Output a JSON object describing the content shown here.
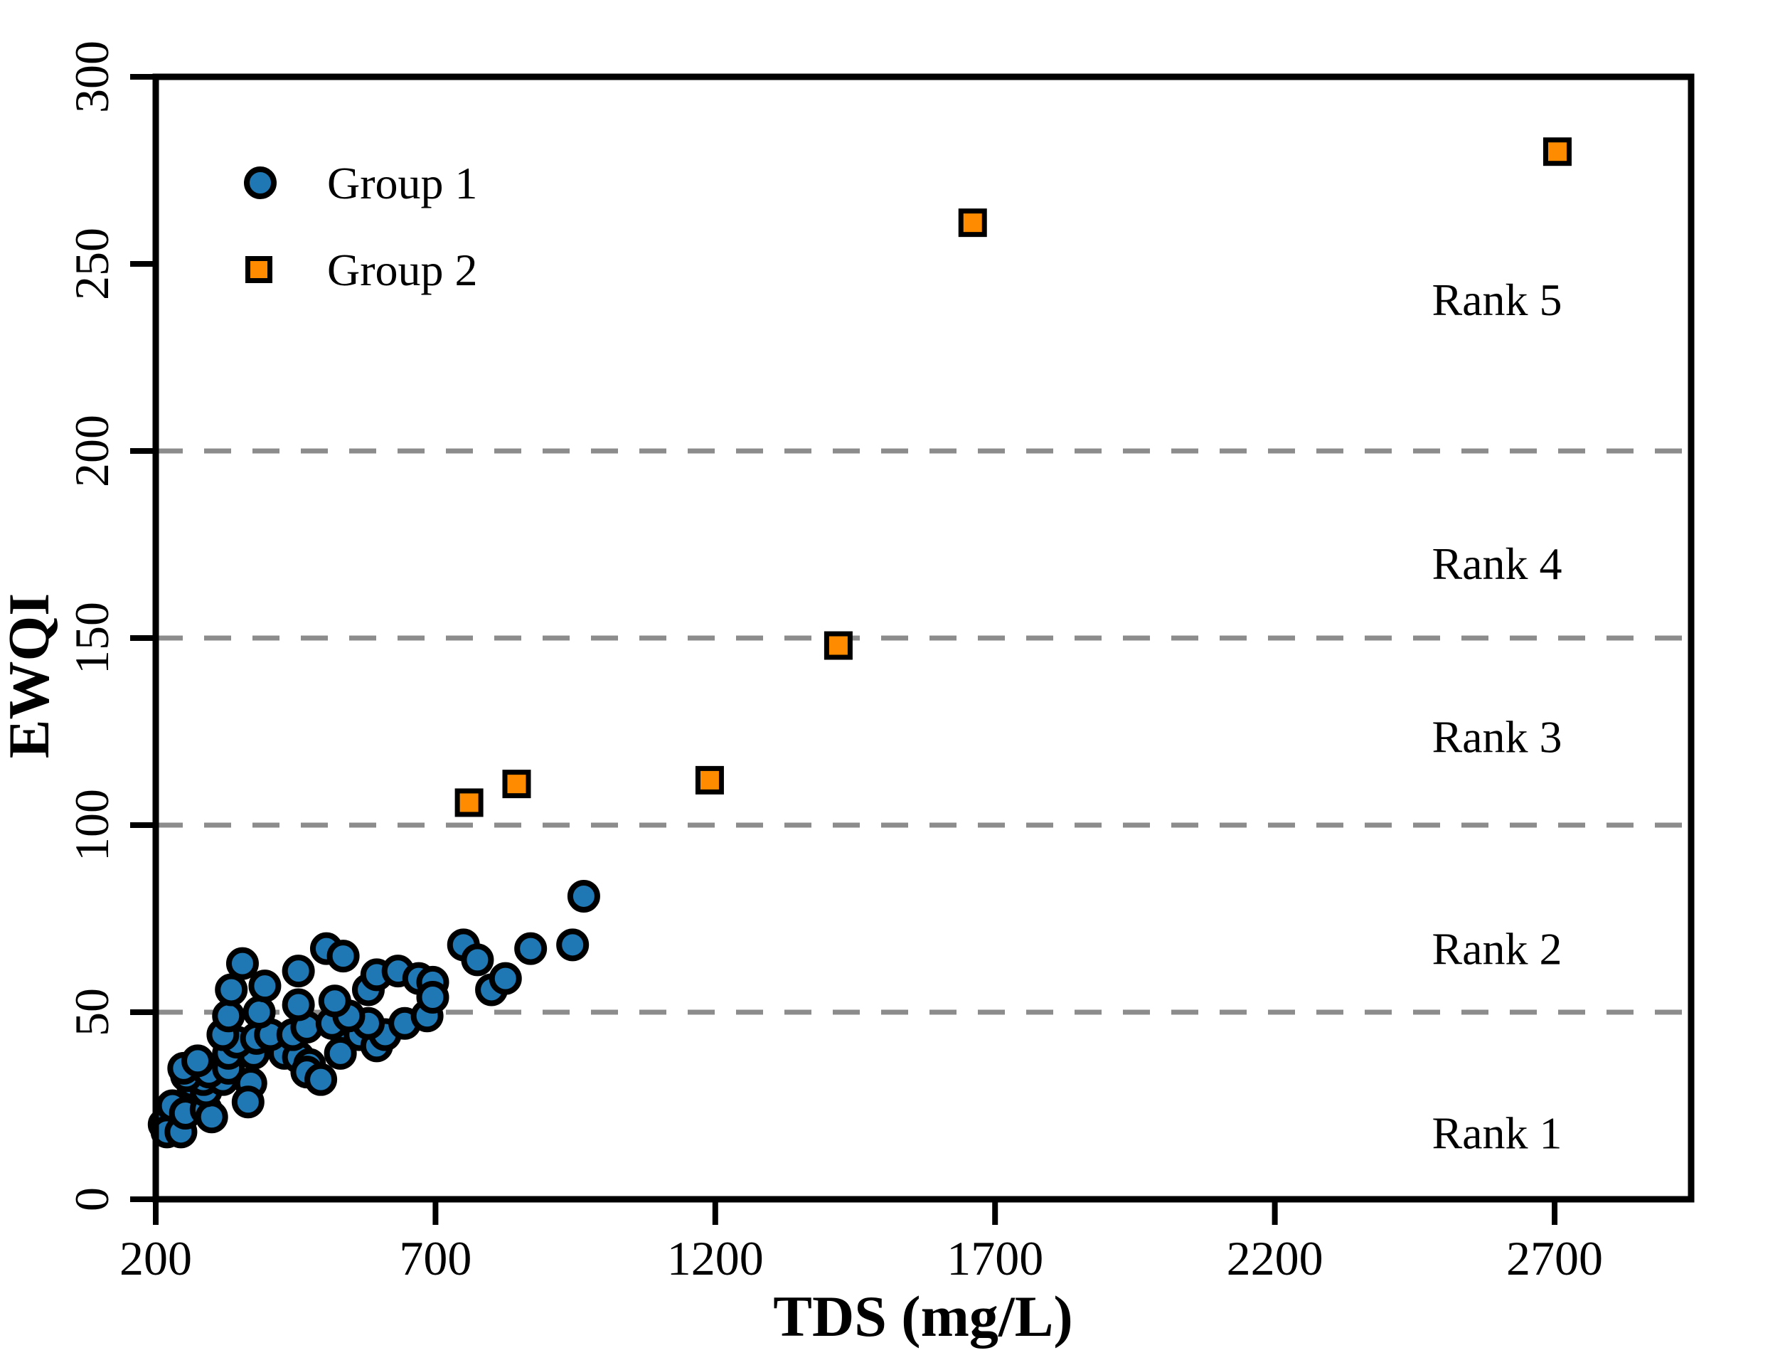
{
  "chart_data": {
    "type": "scatter",
    "title": "",
    "xlabel": "TDS (mg/L)",
    "ylabel": "EWQI",
    "xlim": [
      200,
      2944
    ],
    "ylim": [
      0,
      300
    ],
    "x_ticks": [
      200,
      700,
      1200,
      1700,
      2200,
      2700
    ],
    "y_ticks": [
      0,
      50,
      100,
      150,
      200,
      250,
      300
    ],
    "gridlines_y": [
      50,
      100,
      150,
      200
    ],
    "grid_on": true,
    "grid_color": "#8c8c8c",
    "frame_color": "#000000",
    "legend_position": "inside-top-left",
    "series": [
      {
        "name": "Group 1",
        "marker": "circle",
        "fill_color": "#1f77b4",
        "edge_color": "#000000",
        "points": [
          [
            215,
            20
          ],
          [
            220,
            18
          ],
          [
            245,
            18
          ],
          [
            230,
            25
          ],
          [
            253,
            23
          ],
          [
            290,
            24
          ],
          [
            300,
            22
          ],
          [
            265,
            31
          ],
          [
            290,
            29
          ],
          [
            285,
            32
          ],
          [
            320,
            32
          ],
          [
            255,
            33
          ],
          [
            250,
            35
          ],
          [
            295,
            34
          ],
          [
            330,
            35
          ],
          [
            370,
            31
          ],
          [
            365,
            26
          ],
          [
            275,
            37
          ],
          [
            375,
            39
          ],
          [
            330,
            39
          ],
          [
            430,
            39
          ],
          [
            455,
            38
          ],
          [
            475,
            36
          ],
          [
            470,
            34
          ],
          [
            495,
            32
          ],
          [
            345,
            42
          ],
          [
            320,
            44
          ],
          [
            380,
            43
          ],
          [
            405,
            44
          ],
          [
            445,
            44
          ],
          [
            540,
            44
          ],
          [
            565,
            44
          ],
          [
            595,
            41
          ],
          [
            530,
            39
          ],
          [
            610,
            44
          ],
          [
            470,
            46
          ],
          [
            515,
            47
          ],
          [
            580,
            47
          ],
          [
            645,
            47
          ],
          [
            685,
            49
          ],
          [
            330,
            49
          ],
          [
            385,
            50
          ],
          [
            545,
            49
          ],
          [
            455,
            52
          ],
          [
            520,
            53
          ],
          [
            335,
            56
          ],
          [
            395,
            57
          ],
          [
            455,
            61
          ],
          [
            505,
            67
          ],
          [
            535,
            65
          ],
          [
            355,
            63
          ],
          [
            580,
            56
          ],
          [
            595,
            60
          ],
          [
            633,
            61
          ],
          [
            670,
            59
          ],
          [
            695,
            58
          ],
          [
            695,
            54
          ],
          [
            800,
            56
          ],
          [
            825,
            59
          ],
          [
            750,
            68
          ],
          [
            775,
            64
          ],
          [
            870,
            67
          ],
          [
            945,
            68
          ],
          [
            965,
            81
          ]
        ]
      },
      {
        "name": "Group 2",
        "marker": "square",
        "fill_color": "#ff8c00",
        "edge_color": "#000000",
        "points": [
          [
            760,
            106
          ],
          [
            845,
            111
          ],
          [
            1190,
            112
          ],
          [
            1420,
            148
          ],
          [
            1660,
            261
          ],
          [
            2705,
            280
          ]
        ]
      }
    ],
    "annotations": [
      {
        "label": "Rank 5",
        "ewqi": 240.5
      },
      {
        "label": "Rank 4",
        "ewqi": 170.0
      },
      {
        "label": "Rank 3",
        "ewqi": 123.7
      },
      {
        "label": "Rank 2",
        "ewqi": 67.0
      },
      {
        "label": "Rank 1",
        "ewqi": 17.8
      }
    ]
  }
}
